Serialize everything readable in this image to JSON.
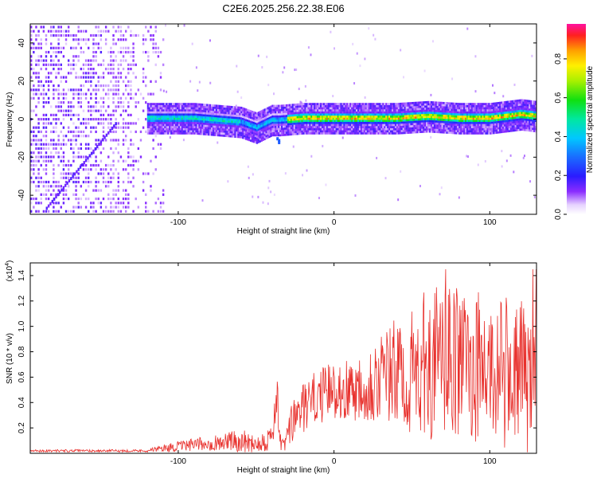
{
  "figure_title": "C2E6.2025.256.22.38.E06",
  "colors": {
    "snr_line": "#e8302c",
    "background": "#ffffff",
    "axis": "#000000"
  },
  "chart_data": [
    {
      "type": "heatmap",
      "title": "C2E6.2025.256.22.38.E06",
      "xlabel": "Height of straight line (km)",
      "ylabel": "Frequency (Hz)",
      "xlim": [
        -195,
        130
      ],
      "ylim": [
        -50,
        50
      ],
      "xticks": [
        -100,
        0,
        100
      ],
      "yticks": [
        -40,
        -20,
        0,
        20,
        40
      ],
      "ridge": {
        "description_x": [
          -120,
          -90,
          -60,
          -50,
          -40,
          -35,
          -20,
          0,
          20,
          40,
          60,
          80,
          100,
          120,
          130
        ],
        "frequency": [
          0,
          0,
          -2,
          -5,
          -1,
          -1,
          0,
          0,
          0,
          0,
          1,
          0,
          0,
          2,
          1
        ]
      },
      "colorbar": {
        "label": "Normalized spectral amplitude",
        "range": [
          0,
          0.98
        ],
        "ticks": [
          "0.0",
          "0.2",
          "0.4",
          "0.6",
          "0.8"
        ]
      }
    },
    {
      "type": "line",
      "xlabel": "Height of straight line (km)",
      "ylabel": "SNR (10 * v/v)",
      "y_multiplier": "(x10",
      "y_multiplier_exp": "4",
      "y_multiplier_close": ")",
      "xlim": [
        -195,
        130
      ],
      "ylim": [
        0,
        1.5
      ],
      "xticks": [
        -100,
        0,
        100
      ],
      "yticks": [
        "0.2",
        "0.4",
        "0.6",
        "0.8",
        "1.0",
        "1.2",
        "1.4"
      ],
      "envelope_x": [
        -195,
        -120,
        -110,
        -80,
        -60,
        -50,
        -40,
        -37,
        -34,
        -30,
        -25,
        -20,
        -10,
        0,
        10,
        20,
        30,
        40,
        50,
        55,
        60,
        70,
        80,
        90,
        100,
        110,
        120,
        130
      ],
      "envelope_mean": [
        0.02,
        0.02,
        0.04,
        0.08,
        0.1,
        0.08,
        0.12,
        0.45,
        0.05,
        0.12,
        0.3,
        0.35,
        0.45,
        0.5,
        0.5,
        0.55,
        0.6,
        0.62,
        0.62,
        0.68,
        0.7,
        0.72,
        0.72,
        0.68,
        0.65,
        0.64,
        0.62,
        0.6
      ],
      "envelope_amplitude": [
        0.01,
        0.01,
        0.03,
        0.06,
        0.09,
        0.08,
        0.1,
        0.25,
        0.04,
        0.12,
        0.2,
        0.2,
        0.22,
        0.22,
        0.25,
        0.3,
        0.38,
        0.45,
        0.5,
        0.55,
        0.6,
        0.6,
        0.6,
        0.6,
        0.6,
        0.6,
        0.6,
        0.62
      ]
    }
  ]
}
